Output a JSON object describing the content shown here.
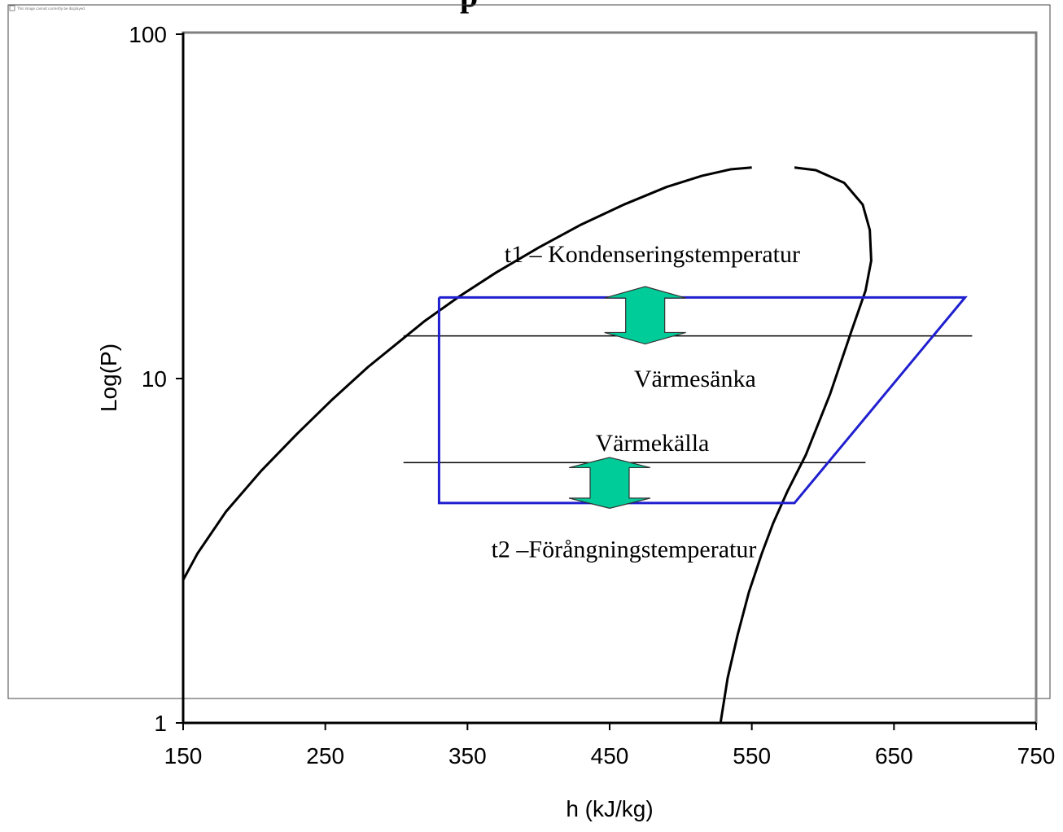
{
  "chart_data": {
    "type": "line",
    "xlabel": "h (kJ/kg)",
    "ylabel": "Log(P)",
    "xlim": [
      150,
      750
    ],
    "ylim": [
      1,
      100
    ],
    "yscale": "log",
    "x_ticks": [
      "150",
      "250",
      "350",
      "450",
      "550",
      "650",
      "750"
    ],
    "y_ticks": [
      "1",
      "10",
      "100"
    ],
    "grid": false,
    "colors": {
      "curve": "#000000",
      "cycle": "#1f1fd0",
      "arrow_fill": "#00cc99",
      "frame": "#808080"
    },
    "saturation_liquid": {
      "x": [
        150,
        160,
        180,
        205,
        230,
        255,
        280,
        300,
        320,
        345,
        370,
        400,
        430,
        460,
        490,
        515,
        535,
        550
      ],
      "y": [
        2.6,
        3.1,
        4.1,
        5.4,
        6.9,
        8.7,
        10.8,
        12.6,
        14.7,
        17.4,
        20.3,
        24,
        28,
        32,
        36,
        38.8,
        40.5,
        41
      ]
    },
    "saturation_vapor": {
      "x": [
        580,
        595,
        615,
        628,
        633,
        634,
        630,
        620,
        605,
        588,
        575,
        565,
        557,
        548,
        540,
        533,
        528
      ],
      "y": [
        41,
        40.3,
        37,
        32,
        27,
        22,
        18,
        13.7,
        9,
        6,
        4.7,
        3.8,
        3.1,
        2.4,
        1.8,
        1.35,
        1
      ]
    },
    "cycle": {
      "x": [
        330,
        700,
        580,
        330,
        330
      ],
      "y": [
        17.2,
        17.2,
        4.35,
        4.35,
        17.2
      ]
    },
    "isobars": [
      {
        "x": [
          305,
          705
        ],
        "y": 13.3
      },
      {
        "x": [
          305,
          630
        ],
        "y": 5.7
      }
    ],
    "arrows": [
      {
        "x": 475,
        "y_top": 18.5,
        "y_bottom": 12.6
      },
      {
        "x": 450,
        "y_top": 5.9,
        "y_bottom": 4.2
      }
    ],
    "annotations": [
      {
        "text": "t1 – Kondenseringstemperatur",
        "x": 480,
        "y": 23
      },
      {
        "text": "Värmesänka",
        "x": 510,
        "y": 10
      },
      {
        "text": "Värmekälla",
        "x": 480,
        "y": 6.5
      },
      {
        "text": "t2 –Förångningstemperatur",
        "x": 460,
        "y": 3.2
      }
    ]
  },
  "broken_image_text": "This image cannot currently be displayed."
}
